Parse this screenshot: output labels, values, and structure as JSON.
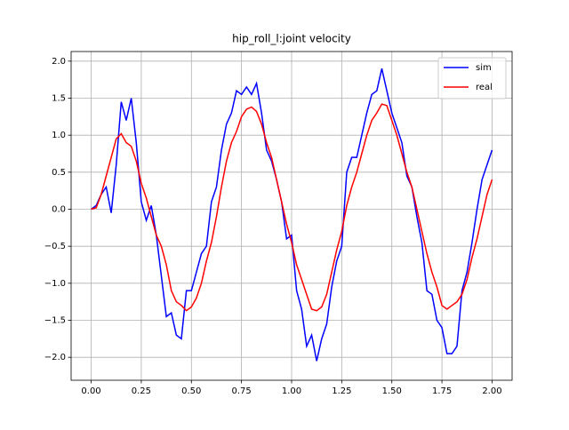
{
  "chart_data": {
    "type": "line",
    "title": "hip_roll_l:joint velocity",
    "x": [
      0,
      0.025,
      0.05,
      0.075,
      0.1,
      0.125,
      0.15,
      0.175,
      0.2,
      0.225,
      0.25,
      0.275,
      0.3,
      0.325,
      0.35,
      0.375,
      0.4,
      0.425,
      0.45,
      0.475,
      0.5,
      0.525,
      0.55,
      0.575,
      0.6,
      0.625,
      0.65,
      0.675,
      0.7,
      0.725,
      0.75,
      0.775,
      0.8,
      0.825,
      0.85,
      0.875,
      0.9,
      0.925,
      0.95,
      0.975,
      1.0,
      1.025,
      1.05,
      1.075,
      1.1,
      1.125,
      1.15,
      1.175,
      1.2,
      1.225,
      1.25,
      1.275,
      1.3,
      1.325,
      1.35,
      1.375,
      1.4,
      1.425,
      1.45,
      1.475,
      1.5,
      1.525,
      1.55,
      1.575,
      1.6,
      1.625,
      1.65,
      1.675,
      1.7,
      1.725,
      1.75,
      1.775,
      1.8,
      1.825,
      1.85,
      1.875,
      1.9,
      1.925,
      1.95,
      1.975,
      2.0
    ],
    "series": [
      {
        "name": "sim",
        "color": "#0000ff",
        "values": [
          0,
          0.05,
          0.2,
          0.3,
          -0.05,
          0.6,
          1.45,
          1.2,
          1.5,
          0.9,
          0.1,
          -0.15,
          0.05,
          -0.35,
          -0.9,
          -1.45,
          -1.4,
          -1.7,
          -1.75,
          -1.1,
          -1.1,
          -0.85,
          -0.6,
          -0.5,
          0.1,
          0.3,
          0.8,
          1.15,
          1.3,
          1.6,
          1.55,
          1.65,
          1.55,
          1.7,
          1.3,
          0.8,
          0.65,
          0.4,
          0.1,
          -0.4,
          -0.35,
          -1.1,
          -1.35,
          -1.85,
          -1.7,
          -2.05,
          -1.75,
          -1.55,
          -1.05,
          -0.7,
          -0.5,
          0.5,
          0.7,
          0.7,
          1.0,
          1.3,
          1.55,
          1.6,
          1.9,
          1.6,
          1.3,
          1.1,
          0.9,
          0.45,
          0.3,
          -0.1,
          -0.45,
          -1.1,
          -1.15,
          -1.5,
          -1.6,
          -1.95,
          -1.95,
          -1.85,
          -1.1,
          -0.85,
          -0.45,
          0.0,
          0.4,
          0.6,
          0.8
        ]
      },
      {
        "name": "real",
        "color": "#ff0000",
        "values": [
          0,
          0.02,
          0.2,
          0.45,
          0.7,
          0.95,
          1.02,
          0.9,
          0.85,
          0.65,
          0.35,
          0.15,
          -0.1,
          -0.35,
          -0.5,
          -0.75,
          -1.1,
          -1.25,
          -1.3,
          -1.37,
          -1.32,
          -1.2,
          -1.0,
          -0.7,
          -0.45,
          -0.1,
          0.3,
          0.65,
          0.9,
          1.05,
          1.25,
          1.35,
          1.38,
          1.32,
          1.15,
          0.9,
          0.7,
          0.4,
          0.1,
          -0.2,
          -0.45,
          -0.75,
          -0.95,
          -1.15,
          -1.35,
          -1.37,
          -1.32,
          -1.15,
          -0.85,
          -0.55,
          -0.3,
          0.05,
          0.3,
          0.5,
          0.75,
          1.0,
          1.2,
          1.3,
          1.42,
          1.4,
          1.2,
          1.0,
          0.75,
          0.5,
          0.3,
          0.0,
          -0.3,
          -0.6,
          -0.85,
          -1.05,
          -1.3,
          -1.35,
          -1.3,
          -1.25,
          -1.15,
          -0.95,
          -0.65,
          -0.4,
          -0.1,
          0.2,
          0.4
        ]
      }
    ],
    "xlim": [
      -0.1,
      2.1
    ],
    "ylim": [
      -2.31,
      2.13
    ],
    "xticks": [
      {
        "value": 0,
        "label": "0.00"
      },
      {
        "value": 0.25,
        "label": "0.25"
      },
      {
        "value": 0.5,
        "label": "0.50"
      },
      {
        "value": 0.75,
        "label": "0.75"
      },
      {
        "value": 1,
        "label": "1.00"
      },
      {
        "value": 1.25,
        "label": "1.25"
      },
      {
        "value": 1.5,
        "label": "1.50"
      },
      {
        "value": 1.75,
        "label": "1.75"
      },
      {
        "value": 2,
        "label": "2.00"
      }
    ],
    "yticks": [
      {
        "value": -2,
        "label": "−2.0"
      },
      {
        "value": -1.5,
        "label": "−1.5"
      },
      {
        "value": -1,
        "label": "−1.0"
      },
      {
        "value": -0.5,
        "label": "−0.5"
      },
      {
        "value": 0,
        "label": "0.0"
      },
      {
        "value": 0.5,
        "label": "0.5"
      },
      {
        "value": 1,
        "label": "1.0"
      },
      {
        "value": 1.5,
        "label": "1.5"
      },
      {
        "value": 2,
        "label": "2.0"
      }
    ],
    "grid": true,
    "legend": "upper right"
  }
}
